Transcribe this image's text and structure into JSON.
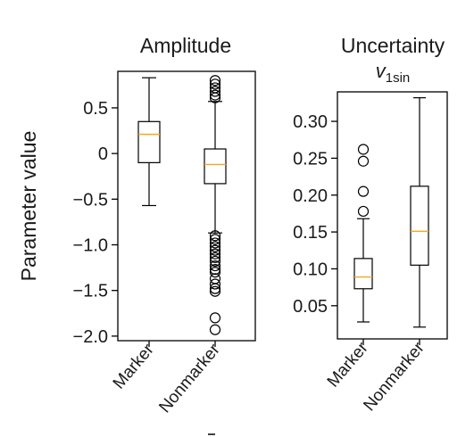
{
  "ylabel": "Parameter value",
  "chart_data": [
    {
      "type": "box",
      "title": "Amplitude",
      "ylabel": "Parameter value",
      "categories": [
        "Marker",
        "Nonmarker"
      ],
      "ylim": [
        -2.05,
        0.9
      ],
      "yticks": [
        0.5,
        0,
        -0.5,
        -1.0,
        -1.5,
        -2.0
      ],
      "ytick_labels": [
        "0.5",
        "0",
        "−0.5",
        "−1.0",
        "−1.5",
        "−2.0"
      ],
      "boxes": [
        {
          "category": "Marker",
          "whisker_low": -0.57,
          "q1": -0.1,
          "median": 0.21,
          "q3": 0.35,
          "whisker_high": 0.83,
          "outliers": []
        },
        {
          "category": "Nonmarker",
          "whisker_low": -0.87,
          "q1": -0.33,
          "median": -0.12,
          "q3": 0.05,
          "whisker_high": 0.57,
          "outliers": [
            0.8,
            0.76,
            0.72,
            0.68,
            0.64,
            0.61,
            -0.9,
            -0.94,
            -0.98,
            -1.02,
            -1.06,
            -1.1,
            -1.14,
            -1.18,
            -1.23,
            -1.27,
            -1.3,
            -1.37,
            -1.43,
            -1.48,
            -1.51,
            -1.8,
            -1.93
          ]
        }
      ],
      "box_color": "#000000",
      "median_color": "#f5a623"
    },
    {
      "type": "box",
      "title": "Uncertainty",
      "subtitle": "v1sin",
      "subtitle_main": "v",
      "subtitle_sub": "1sin",
      "categories": [
        "Marker",
        "Nonmarker"
      ],
      "ylim": [
        0.005,
        0.34
      ],
      "yticks": [
        0.3,
        0.25,
        0.2,
        0.15,
        0.1,
        0.05
      ],
      "ytick_labels": [
        "0.30",
        "0.25",
        "0.20",
        "0.15",
        "0.10",
        "0.05"
      ],
      "boxes": [
        {
          "category": "Marker",
          "whisker_low": 0.028,
          "q1": 0.073,
          "median": 0.089,
          "q3": 0.114,
          "whisker_high": 0.168,
          "outliers": [
            0.178,
            0.205,
            0.246,
            0.262
          ]
        },
        {
          "category": "Nonmarker",
          "whisker_low": 0.021,
          "q1": 0.105,
          "median": 0.151,
          "q3": 0.212,
          "whisker_high": 0.332,
          "outliers": []
        }
      ],
      "box_color": "#000000",
      "median_color": "#f5a623"
    }
  ]
}
